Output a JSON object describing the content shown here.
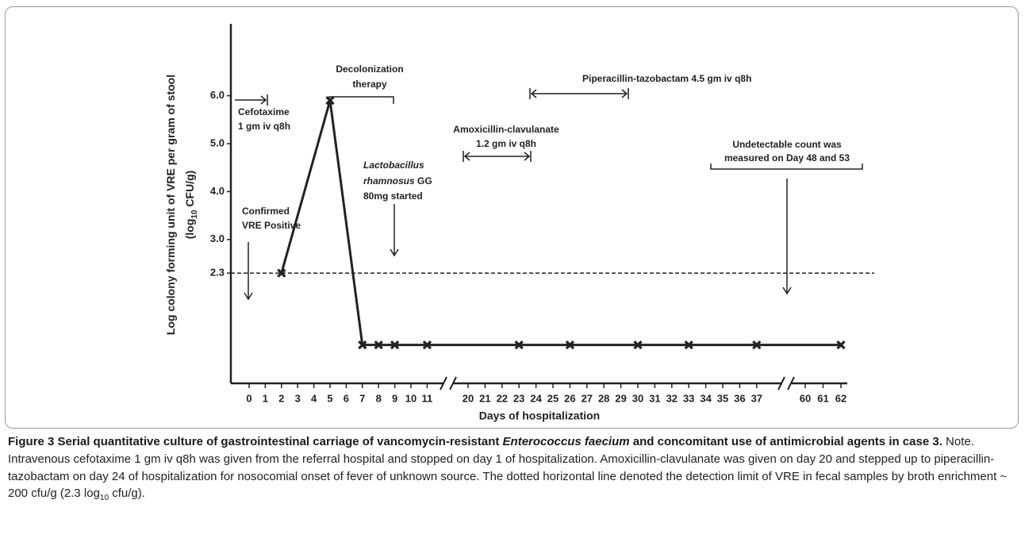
{
  "chart_data": {
    "type": "line",
    "y_label": [
      "Log colony forming unit of VRE per gram of stool",
      "(log",
      "10",
      " CFU/g)"
    ],
    "x_label": "Days of hospitalization",
    "xticks": [
      0,
      1,
      2,
      3,
      4,
      5,
      6,
      7,
      8,
      9,
      10,
      11,
      20,
      21,
      22,
      23,
      24,
      25,
      26,
      27,
      28,
      29,
      30,
      31,
      32,
      33,
      34,
      35,
      36,
      37,
      60,
      61,
      62
    ],
    "x": [
      2,
      5,
      7,
      8,
      9,
      11,
      23,
      26,
      30,
      33,
      37,
      62
    ],
    "values": [
      2.3,
      5.9,
      0.8,
      0.8,
      0.8,
      0.8,
      0.8,
      0.8,
      0.8,
      0.8,
      0.8,
      0.8
    ],
    "color": "#222222",
    "ylim": [
      0,
      7.5
    ],
    "yticks": [
      2.3,
      {
        "value": 3,
        "label": "3.0"
      },
      {
        "value": 4,
        "label": "4.0"
      },
      {
        "value": 5,
        "label": "5.0"
      },
      {
        "value": 6,
        "label": "6.0"
      }
    ],
    "annotations": {
      "cefotaxime": [
        "Cefotaxime",
        "1 gm iv q8h"
      ],
      "decolonization": [
        "Decolonization",
        "therapy"
      ],
      "piperacillin": "Piperacillin-tazobactam 4.5 gm iv q8h",
      "amoxicillin": [
        "Amoxicillin-clavulanate",
        "1.2 gm iv q8h"
      ],
      "lactobacillus": [
        "Lactobacillus",
        "rhamnosus",
        " GG",
        "80mg started"
      ],
      "confirmed": [
        "Confirmed",
        "VRE Positive"
      ],
      "undetectable": [
        "Undetectable count was",
        "measured on Day 48 and 53"
      ]
    }
  },
  "caption": {
    "label": "Figure 3",
    "title": [
      " Serial quantitative culture of gastrointestinal carriage of vancomycin-resistant ",
      "Enterococcus faecium",
      " and concomitant use of antimicrobial agents in case 3."
    ],
    "note": [
      "Note. Intravenous cefotaxime 1 gm iv q8h was given from the referral hospital and stopped on day 1 of hospitalization. Amoxicillin-clavulanate was given on day 20 and stepped up to piperacillin-tazobactam on day 24 of hospitalization for nosocomial onset of fever of unknown source. The dotted horizontal line denoted the detection limit of VRE in fecal samples by broth enrichment ~ 200 cfu/g (2.3 log",
      "10",
      " cfu/g)."
    ]
  }
}
